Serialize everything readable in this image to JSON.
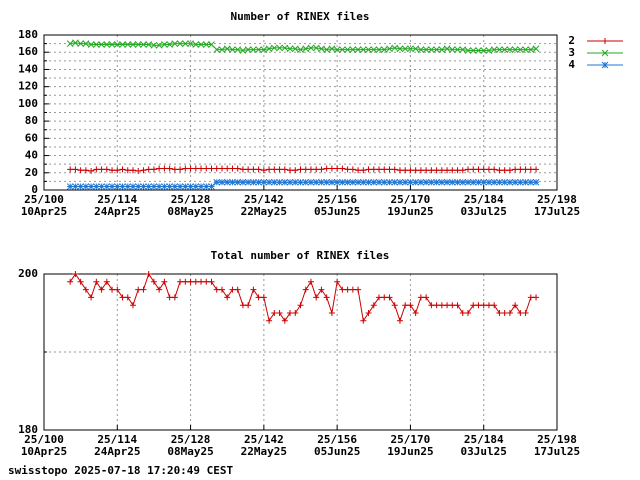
{
  "chart_data": [
    {
      "type": "line",
      "title": "Number of RINEX files",
      "x": [
        105,
        106,
        107,
        108,
        109,
        110,
        111,
        112,
        113,
        114,
        115,
        116,
        117,
        118,
        119,
        120,
        121,
        122,
        123,
        124,
        125,
        126,
        127,
        128,
        129,
        130,
        131,
        132,
        133,
        134,
        135,
        136,
        137,
        138,
        139,
        140,
        141,
        142,
        143,
        144,
        145,
        146,
        147,
        148,
        149,
        150,
        151,
        152,
        153,
        154,
        155,
        156,
        157,
        158,
        159,
        160,
        161,
        162,
        163,
        164,
        165,
        166,
        167,
        168,
        169,
        170,
        171,
        172,
        173,
        174,
        175,
        176,
        177,
        178,
        179,
        180,
        181,
        182,
        183,
        184,
        185,
        186,
        187,
        188,
        189,
        190,
        191,
        192,
        193,
        194
      ],
      "series": [
        {
          "name": "2",
          "color": "#cc0000",
          "marker": "plus",
          "values": [
            24,
            24,
            23,
            23,
            22,
            24,
            24,
            24,
            23,
            23,
            24,
            23,
            23,
            22,
            23,
            24,
            24,
            25,
            25,
            25,
            24,
            24,
            25,
            25,
            25,
            25,
            25,
            25,
            25,
            25,
            25,
            25,
            25,
            24,
            24,
            24,
            24,
            23,
            24,
            24,
            24,
            24,
            23,
            23,
            24,
            24,
            24,
            24,
            24,
            25,
            25,
            25,
            25,
            24,
            24,
            23,
            23,
            24,
            24,
            24,
            24,
            24,
            24,
            23,
            23,
            23,
            23,
            23,
            23,
            23,
            23,
            23,
            23,
            23,
            23,
            23,
            24,
            24,
            24,
            24,
            24,
            24,
            23,
            23,
            23,
            24,
            24,
            24,
            24,
            24
          ]
        },
        {
          "name": "3",
          "color": "#22aa22",
          "marker": "cross",
          "values": [
            170,
            171,
            170,
            170,
            169,
            169,
            169,
            169,
            169,
            169,
            169,
            169,
            169,
            169,
            169,
            169,
            168,
            168,
            169,
            169,
            170,
            170,
            170,
            170,
            169,
            169,
            169,
            169,
            163,
            163,
            164,
            163,
            163,
            162,
            163,
            163,
            163,
            163,
            164,
            165,
            165,
            165,
            164,
            164,
            163,
            164,
            165,
            165,
            164,
            163,
            164,
            163,
            163,
            163,
            163,
            163,
            163,
            163,
            163,
            163,
            163,
            164,
            165,
            164,
            164,
            164,
            164,
            163,
            163,
            163,
            163,
            163,
            164,
            163,
            163,
            163,
            162,
            162,
            162,
            162,
            162,
            163,
            163,
            163,
            163,
            163,
            163,
            163,
            163,
            164
          ]
        },
        {
          "name": "4",
          "color": "#1f77d4",
          "marker": "star",
          "values": [
            4,
            4,
            4,
            4,
            4,
            4,
            4,
            4,
            4,
            4,
            4,
            4,
            4,
            4,
            4,
            4,
            4,
            4,
            4,
            4,
            4,
            4,
            4,
            4,
            4,
            4,
            4,
            4,
            9,
            9,
            9,
            9,
            9,
            9,
            9,
            9,
            9,
            9,
            9,
            9,
            9,
            9,
            9,
            9,
            9,
            9,
            9,
            9,
            9,
            9,
            9,
            9,
            9,
            9,
            9,
            9,
            9,
            9,
            9,
            9,
            9,
            9,
            9,
            9,
            9,
            9,
            9,
            9,
            9,
            9,
            9,
            9,
            9,
            9,
            9,
            9,
            9,
            9,
            9,
            9,
            9,
            9,
            9,
            9,
            9,
            9,
            9,
            9,
            9,
            9
          ]
        }
      ],
      "xlim": [
        100,
        198
      ],
      "xticks": [
        {
          "value": 100,
          "label": "25/100",
          "date": "10Apr25"
        },
        {
          "value": 114,
          "label": "25/114",
          "date": "24Apr25"
        },
        {
          "value": 128,
          "label": "25/128",
          "date": "08May25"
        },
        {
          "value": 142,
          "label": "25/142",
          "date": "22May25"
        },
        {
          "value": 156,
          "label": "25/156",
          "date": "05Jun25"
        },
        {
          "value": 170,
          "label": "25/170",
          "date": "19Jun25"
        },
        {
          "value": 184,
          "label": "25/184",
          "date": "03Jul25"
        },
        {
          "value": 198,
          "label": "25/198",
          "date": "17Jul25"
        }
      ],
      "ylim": [
        0,
        180
      ],
      "yticks": [
        0,
        20,
        40,
        60,
        80,
        100,
        120,
        140,
        160,
        180
      ],
      "y_minor_ticks": [
        10,
        30,
        50,
        70,
        90,
        110,
        130,
        150,
        170
      ],
      "grid": true,
      "legend": "outside-right"
    },
    {
      "type": "line",
      "title": "Total number of RINEX files",
      "x": [
        105,
        106,
        107,
        108,
        109,
        110,
        111,
        112,
        113,
        114,
        115,
        116,
        117,
        118,
        119,
        120,
        121,
        122,
        123,
        124,
        125,
        126,
        127,
        128,
        129,
        130,
        131,
        132,
        133,
        134,
        135,
        136,
        137,
        138,
        139,
        140,
        141,
        142,
        143,
        144,
        145,
        146,
        147,
        148,
        149,
        150,
        151,
        152,
        153,
        154,
        155,
        156,
        157,
        158,
        159,
        160,
        161,
        162,
        163,
        164,
        165,
        166,
        167,
        168,
        169,
        170,
        171,
        172,
        173,
        174,
        175,
        176,
        177,
        178,
        179,
        180,
        181,
        182,
        183,
        184,
        185,
        186,
        187,
        188,
        189,
        190,
        191,
        192,
        193,
        194
      ],
      "series": [
        {
          "color": "#cc0000",
          "marker": "plus",
          "values": [
            199,
            200,
            199,
            198,
            197,
            199,
            198,
            199,
            198,
            198,
            197,
            197,
            196,
            198,
            198,
            200,
            199,
            198,
            199,
            197,
            197,
            199,
            199,
            199,
            199,
            199,
            199,
            199,
            198,
            198,
            197,
            198,
            198,
            196,
            196,
            198,
            197,
            197,
            194,
            195,
            195,
            194,
            195,
            195,
            196,
            198,
            199,
            197,
            198,
            197,
            195,
            199,
            198,
            198,
            198,
            198,
            194,
            195,
            196,
            197,
            197,
            197,
            196,
            194,
            196,
            196,
            195,
            197,
            197,
            196,
            196,
            196,
            196,
            196,
            196,
            195,
            195,
            196,
            196,
            196,
            196,
            196,
            195,
            195,
            195,
            196,
            195,
            195,
            197,
            197
          ]
        }
      ],
      "xlim": [
        100,
        198
      ],
      "xticks": [
        {
          "value": 100,
          "label": "25/100",
          "date": "10Apr25"
        },
        {
          "value": 114,
          "label": "25/114",
          "date": "24Apr25"
        },
        {
          "value": 128,
          "label": "25/128",
          "date": "08May25"
        },
        {
          "value": 142,
          "label": "25/142",
          "date": "22May25"
        },
        {
          "value": 156,
          "label": "25/156",
          "date": "05Jun25"
        },
        {
          "value": 170,
          "label": "25/170",
          "date": "19Jun25"
        },
        {
          "value": 184,
          "label": "25/184",
          "date": "03Jul25"
        },
        {
          "value": 198,
          "label": "25/198",
          "date": "17Jul25"
        }
      ],
      "ylim": [
        180,
        200
      ],
      "yticks": [
        180,
        200
      ],
      "y_minor_ticks": [
        190
      ],
      "grid": true
    }
  ],
  "footer": "swisstopo 2025-07-18 17:20:49 CEST"
}
